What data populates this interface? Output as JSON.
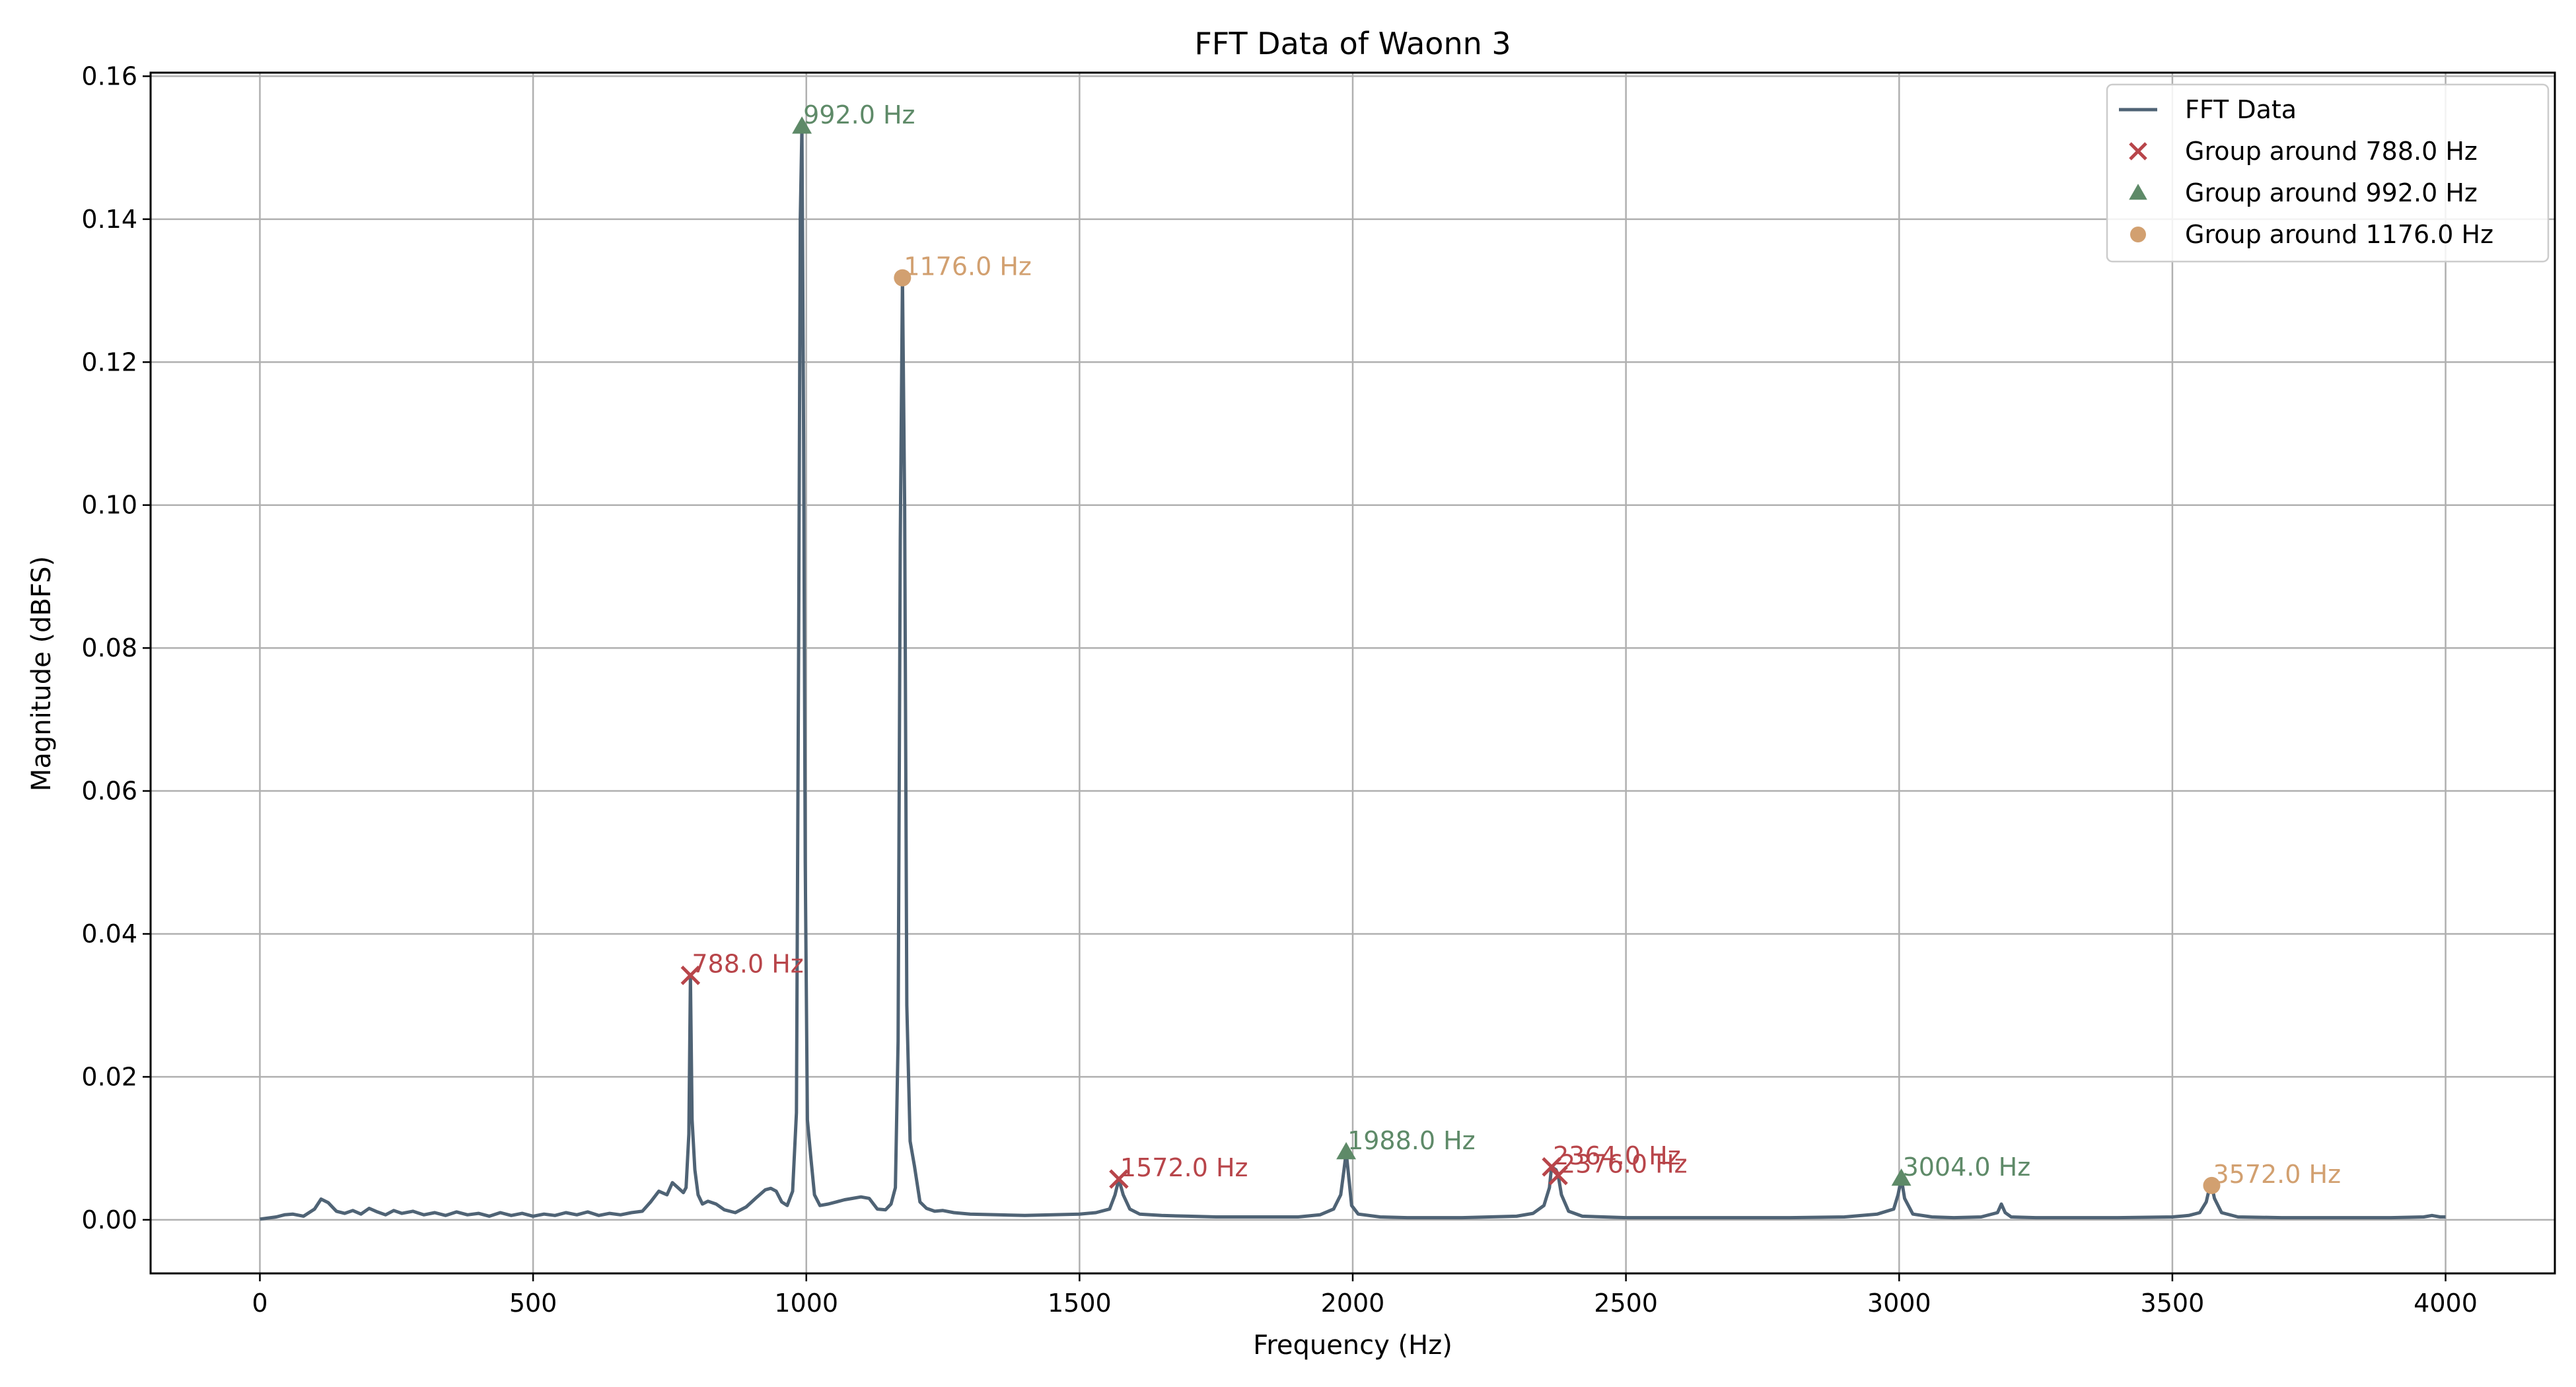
{
  "chart_data": {
    "type": "line",
    "title": "FFT Data of Waonn 3",
    "xlabel": "Frequency (Hz)",
    "ylabel": "Magnitude (dBFS)",
    "xlim": [
      -200,
      4200
    ],
    "ylim": [
      -0.0075,
      0.1605
    ],
    "xticks": [
      0,
      500,
      1000,
      1500,
      2000,
      2500,
      3000,
      3500,
      4000
    ],
    "yticks": [
      0.0,
      0.02,
      0.04,
      0.06,
      0.08,
      0.1,
      0.12,
      0.14,
      0.16
    ],
    "ytick_labels": [
      "0.00",
      "0.02",
      "0.04",
      "0.06",
      "0.08",
      "0.10",
      "0.12",
      "0.14",
      "0.16"
    ],
    "grid": true,
    "legend_position": "top-right",
    "colors": {
      "line": "#4f6375",
      "group_788": "#b8454a",
      "group_992": "#5e8a68",
      "group_1176": "#d2a070"
    },
    "series": [
      {
        "name": "FFT Data",
        "x": [
          0,
          30,
          45,
          60,
          80,
          100,
          112,
          125,
          140,
          155,
          170,
          185,
          200,
          215,
          230,
          245,
          260,
          280,
          300,
          320,
          340,
          360,
          380,
          400,
          420,
          440,
          460,
          480,
          500,
          520,
          540,
          560,
          580,
          600,
          620,
          640,
          660,
          680,
          700,
          715,
          730,
          745,
          755,
          765,
          775,
          780,
          785,
          788,
          791,
          796,
          802,
          810,
          820,
          835,
          850,
          870,
          890,
          910,
          925,
          935,
          945,
          955,
          965,
          975,
          982,
          986,
          989,
          992,
          995,
          998,
          1002,
          1008,
          1015,
          1025,
          1040,
          1055,
          1070,
          1085,
          1100,
          1115,
          1130,
          1145,
          1155,
          1163,
          1168,
          1172,
          1176,
          1180,
          1184,
          1190,
          1198,
          1208,
          1220,
          1235,
          1250,
          1270,
          1300,
          1350,
          1400,
          1450,
          1500,
          1530,
          1555,
          1565,
          1572,
          1580,
          1592,
          1610,
          1650,
          1700,
          1750,
          1800,
          1850,
          1900,
          1940,
          1965,
          1978,
          1984,
          1988,
          1992,
          1998,
          2010,
          2050,
          2100,
          2150,
          2200,
          2250,
          2300,
          2330,
          2350,
          2360,
          2364,
          2368,
          2372,
          2376,
          2382,
          2395,
          2420,
          2500,
          2600,
          2700,
          2800,
          2900,
          2960,
          2990,
          2998,
          3004,
          3010,
          3025,
          3060,
          3100,
          3150,
          3180,
          3187,
          3194,
          3205,
          3250,
          3300,
          3400,
          3500,
          3530,
          3550,
          3562,
          3568,
          3572,
          3577,
          3590,
          3620,
          3700,
          3800,
          3900,
          3960,
          3975,
          3990,
          4000
        ],
        "values": [
          0.0001,
          0.0004,
          0.0007,
          0.0008,
          0.0005,
          0.0015,
          0.0029,
          0.0024,
          0.0012,
          0.0009,
          0.0013,
          0.0008,
          0.0016,
          0.0011,
          0.0007,
          0.0013,
          0.0009,
          0.0012,
          0.0007,
          0.001,
          0.0006,
          0.0011,
          0.0007,
          0.0009,
          0.0005,
          0.001,
          0.0006,
          0.0009,
          0.0005,
          0.0008,
          0.0006,
          0.001,
          0.0007,
          0.0011,
          0.0006,
          0.0009,
          0.0007,
          0.001,
          0.0012,
          0.0025,
          0.004,
          0.0035,
          0.0052,
          0.0045,
          0.0038,
          0.0045,
          0.012,
          0.034,
          0.014,
          0.007,
          0.0035,
          0.0022,
          0.0026,
          0.0022,
          0.0014,
          0.001,
          0.0018,
          0.0032,
          0.0042,
          0.0044,
          0.004,
          0.0025,
          0.002,
          0.004,
          0.015,
          0.08,
          0.14,
          0.153,
          0.11,
          0.05,
          0.014,
          0.009,
          0.0035,
          0.002,
          0.0022,
          0.0025,
          0.0028,
          0.003,
          0.0032,
          0.003,
          0.0015,
          0.0014,
          0.0022,
          0.0045,
          0.025,
          0.095,
          0.132,
          0.1,
          0.03,
          0.011,
          0.0075,
          0.0025,
          0.0016,
          0.0012,
          0.0013,
          0.001,
          0.0008,
          0.0007,
          0.0006,
          0.0007,
          0.0008,
          0.001,
          0.0015,
          0.0035,
          0.0057,
          0.0035,
          0.0015,
          0.0008,
          0.0006,
          0.0005,
          0.0004,
          0.0004,
          0.0004,
          0.0004,
          0.0007,
          0.0015,
          0.0035,
          0.007,
          0.0095,
          0.0065,
          0.002,
          0.0008,
          0.0004,
          0.0003,
          0.0003,
          0.0003,
          0.0004,
          0.0005,
          0.0009,
          0.002,
          0.0045,
          0.0075,
          0.0072,
          0.007,
          0.0062,
          0.0035,
          0.0012,
          0.0005,
          0.0003,
          0.0003,
          0.0003,
          0.0003,
          0.0004,
          0.0008,
          0.0015,
          0.0035,
          0.0058,
          0.003,
          0.0008,
          0.0004,
          0.0003,
          0.0004,
          0.001,
          0.0022,
          0.001,
          0.0004,
          0.0003,
          0.0003,
          0.0003,
          0.0004,
          0.0006,
          0.001,
          0.0025,
          0.0045,
          0.0048,
          0.003,
          0.001,
          0.0004,
          0.0003,
          0.0003,
          0.0003,
          0.0004,
          0.0006,
          0.0004,
          0.0004
        ]
      }
    ],
    "peak_groups": [
      {
        "name": "Group around 788.0 Hz",
        "marker": "x",
        "color": "#b8454a",
        "points": [
          {
            "x": 788.0,
            "y": 0.0342,
            "label": "788.0 Hz"
          },
          {
            "x": 1572.0,
            "y": 0.0057,
            "label": "1572.0 Hz"
          },
          {
            "x": 2364.0,
            "y": 0.0074,
            "label": "2364.0 Hz"
          },
          {
            "x": 2376.0,
            "y": 0.0062,
            "label": "2376.0 Hz"
          }
        ]
      },
      {
        "name": "Group around 992.0 Hz",
        "marker": "triangle",
        "color": "#5e8a68",
        "points": [
          {
            "x": 992.0,
            "y": 0.153,
            "label": "992.0 Hz"
          },
          {
            "x": 1988.0,
            "y": 0.0095,
            "label": "1988.0 Hz"
          },
          {
            "x": 3004.0,
            "y": 0.0058,
            "label": "3004.0 Hz"
          }
        ]
      },
      {
        "name": "Group around 1176.0 Hz",
        "marker": "circle",
        "color": "#d2a070",
        "points": [
          {
            "x": 1176.0,
            "y": 0.1318,
            "label": "1176.0 Hz"
          },
          {
            "x": 3572.0,
            "y": 0.0048,
            "label": "3572.0 Hz"
          }
        ]
      }
    ]
  }
}
